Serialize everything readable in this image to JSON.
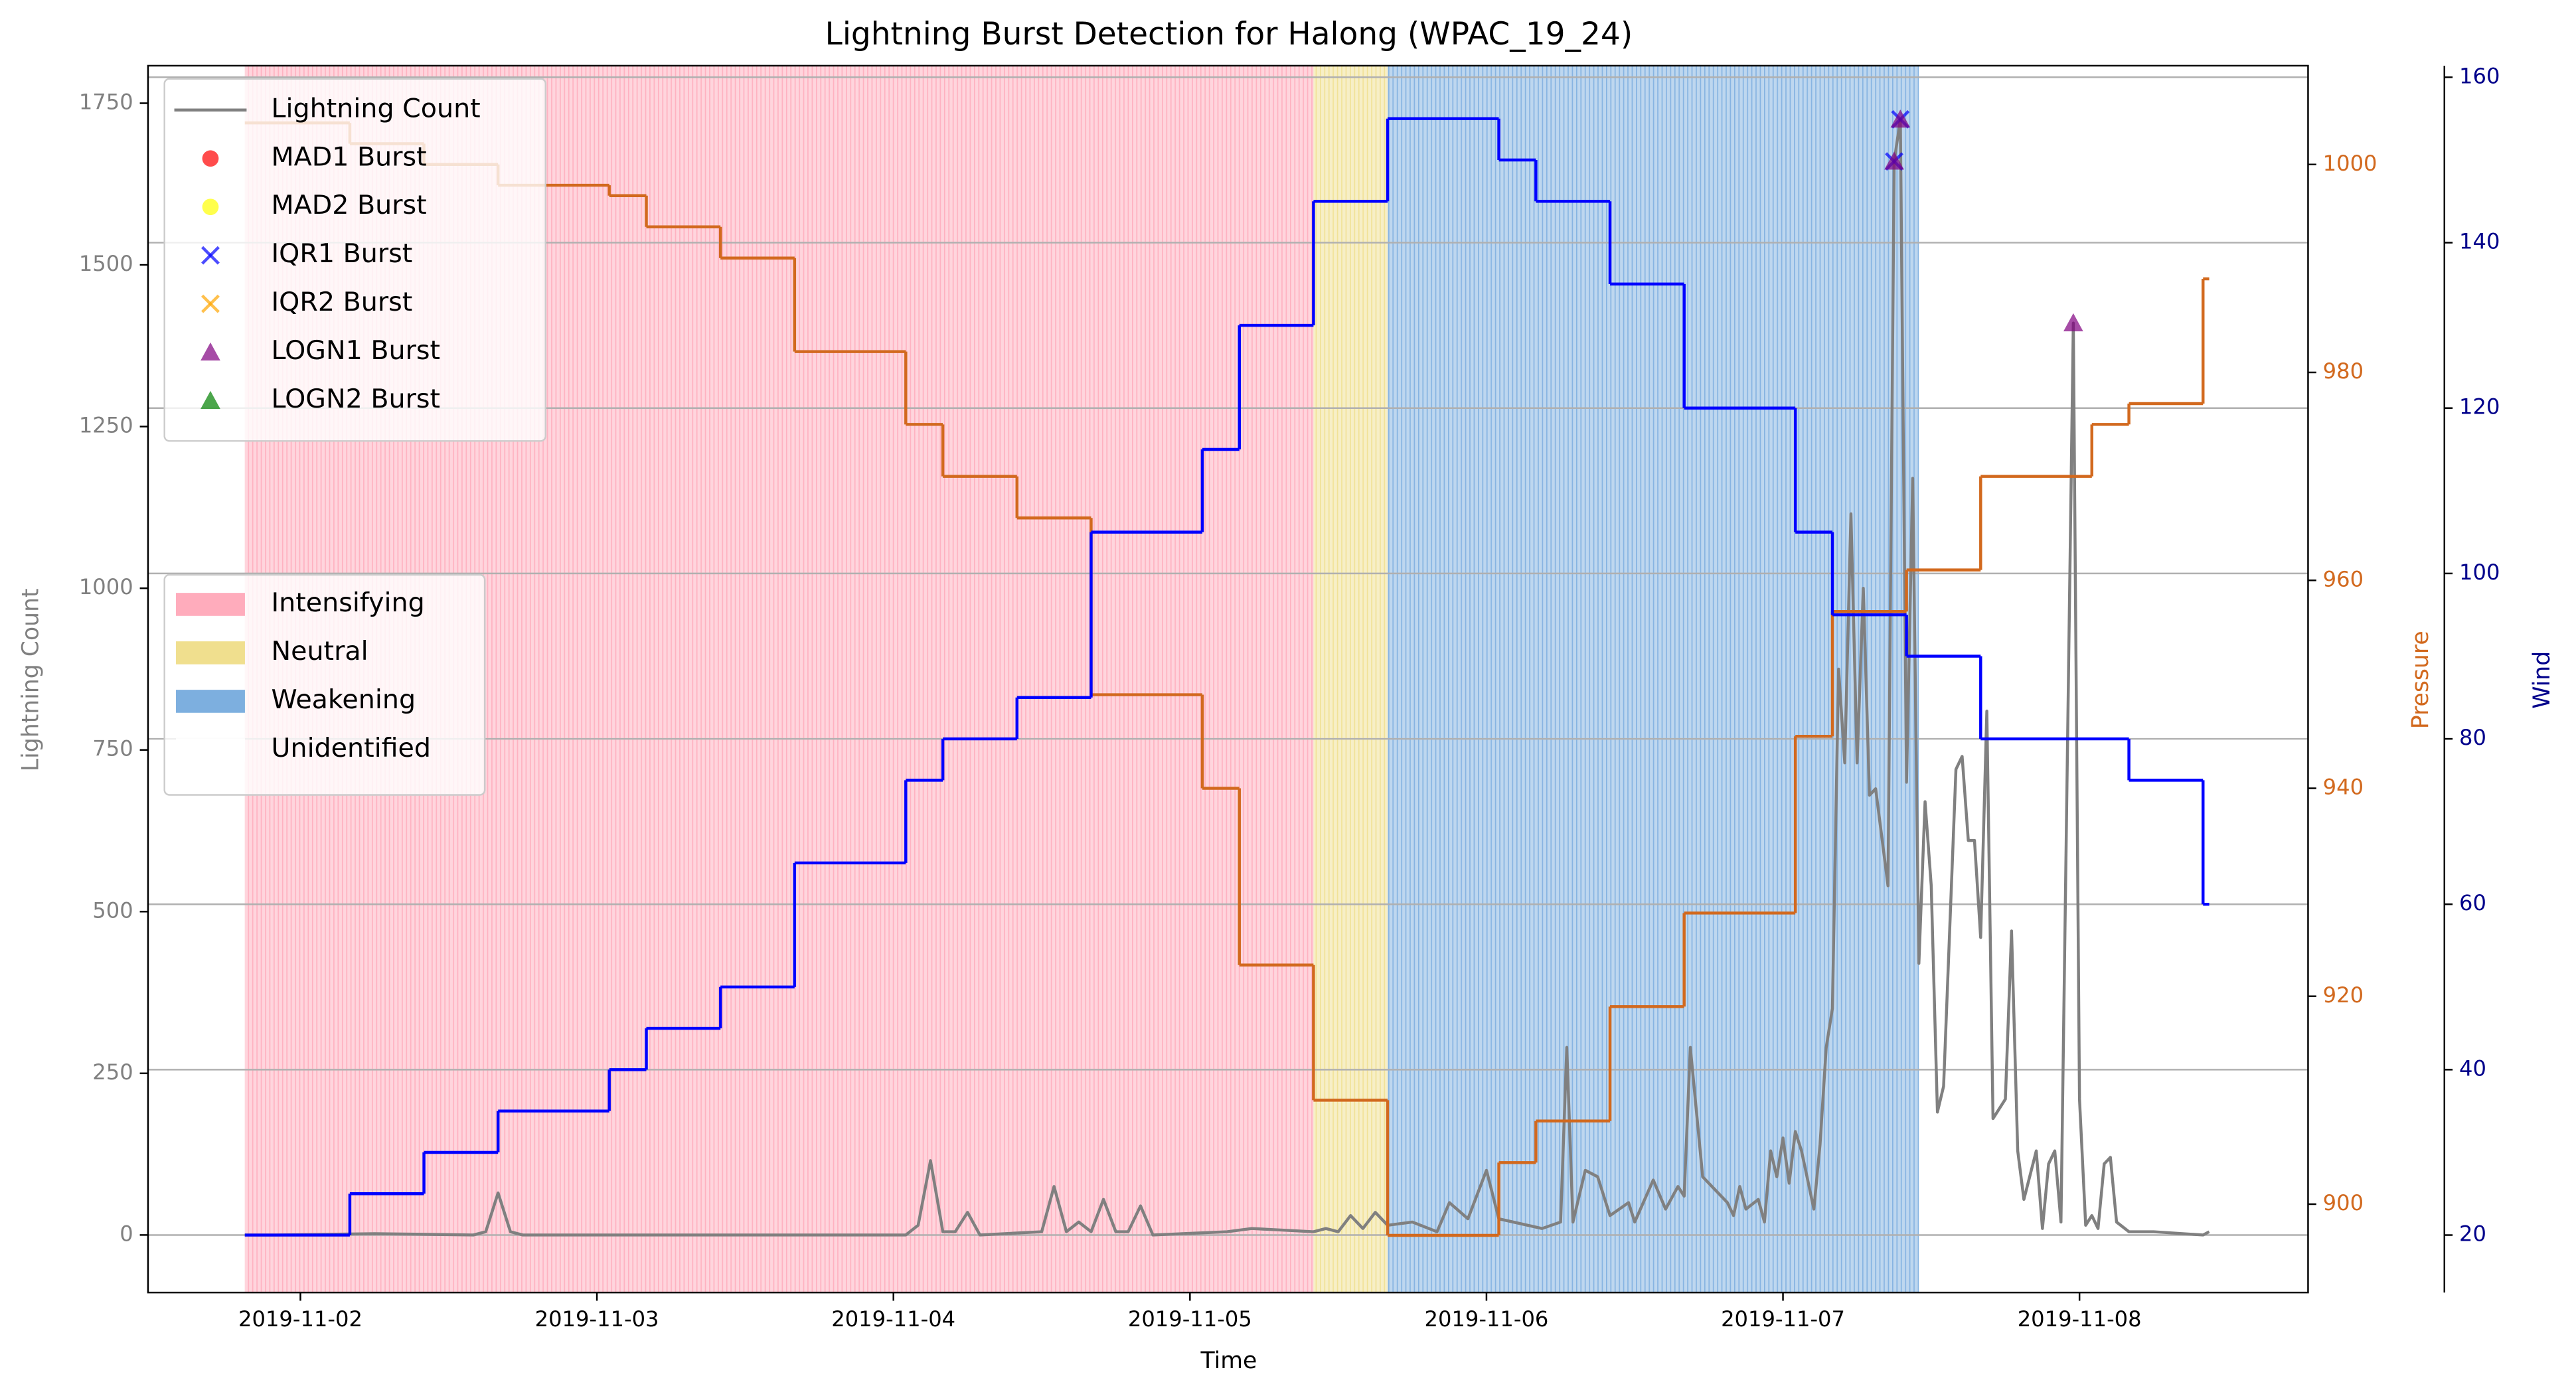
{
  "chart_data": {
    "type": "line",
    "title": "Lightning Burst Detection for Halong (WPAC_19_24)",
    "xlabel": "Time",
    "xlim": [
      "2019-11-01 11:40",
      "2019-11-08 18:30"
    ],
    "xticks": [
      "2019-11-02",
      "2019-11-03",
      "2019-11-04",
      "2019-11-05",
      "2019-11-06",
      "2019-11-07",
      "2019-11-08"
    ],
    "ylabel": "Lightning Count",
    "ylim": [
      -89,
      1808
    ],
    "yticks": [
      0,
      250,
      500,
      750,
      1000,
      1250,
      1500,
      1750
    ],
    "ycolor": "#808080",
    "y2label": "Pressure",
    "y2lim": [
      891.5,
      1009.5
    ],
    "y2ticks": [
      900,
      920,
      940,
      960,
      980,
      1000
    ],
    "y2color": "#d2691e",
    "y3label": "Wind",
    "y3lim": [
      13.05,
      161.4
    ],
    "y3ticks": [
      20,
      40,
      60,
      80,
      100,
      120,
      140,
      160
    ],
    "y3color": "#00008b",
    "grid": "y3",
    "legend": "upper left",
    "series": [
      {
        "name": "Lightning Count",
        "color": "#808080",
        "x": [
          "2019-11-01 19:30",
          "2019-11-01 22:00",
          "2019-11-02 06:00",
          "2019-11-02 14:00",
          "2019-11-02 15:00",
          "2019-11-02 16:00",
          "2019-11-02 17:00",
          "2019-11-02 18:00",
          "2019-11-03 16:00",
          "2019-11-04 01:00",
          "2019-11-04 02:00",
          "2019-11-04 03:00",
          "2019-11-04 04:00",
          "2019-11-04 05:00",
          "2019-11-04 06:00",
          "2019-11-04 07:00",
          "2019-11-04 12:00",
          "2019-11-04 13:00",
          "2019-11-04 14:00",
          "2019-11-04 15:00",
          "2019-11-04 16:00",
          "2019-11-04 17:00",
          "2019-11-04 18:00",
          "2019-11-04 19:00",
          "2019-11-04 20:00",
          "2019-11-04 21:00",
          "2019-11-05 03:00",
          "2019-11-05 05:00",
          "2019-11-05 10:00",
          "2019-11-05 11:00",
          "2019-11-05 12:00",
          "2019-11-05 13:00",
          "2019-11-05 14:00",
          "2019-11-05 15:00",
          "2019-11-05 16:00",
          "2019-11-05 18:00",
          "2019-11-05 20:00",
          "2019-11-05 21:00",
          "2019-11-05 22:30",
          "2019-11-06 00:00",
          "2019-11-06 01:00",
          "2019-11-06 04:30",
          "2019-11-06 06:00",
          "2019-11-06 06:30",
          "2019-11-06 07:00",
          "2019-11-06 08:00",
          "2019-11-06 09:00",
          "2019-11-06 10:00",
          "2019-11-06 11:30",
          "2019-11-06 12:00",
          "2019-11-06 13:30",
          "2019-11-06 14:30",
          "2019-11-06 15:30",
          "2019-11-06 16:00",
          "2019-11-06 16:30",
          "2019-11-06 17:30",
          "2019-11-06 19:30",
          "2019-11-06 20:00",
          "2019-11-06 20:30",
          "2019-11-06 21:00",
          "2019-11-06 22:00",
          "2019-11-06 22:30",
          "2019-11-06 23:00",
          "2019-11-06 23:30",
          "2019-11-07 00:00",
          "2019-11-07 00:30",
          "2019-11-07 01:00",
          "2019-11-07 01:30",
          "2019-11-07 02:30",
          "2019-11-07 03:00",
          "2019-11-07 03:30",
          "2019-11-07 04:00",
          "2019-11-07 04:30",
          "2019-11-07 05:00",
          "2019-11-07 05:30",
          "2019-11-07 06:00",
          "2019-11-07 06:30",
          "2019-11-07 07:00",
          "2019-11-07 07:30",
          "2019-11-07 08:30",
          "2019-11-07 09:00",
          "2019-11-07 09:30",
          "2019-11-07 10:00",
          "2019-11-07 10:30",
          "2019-11-07 11:00",
          "2019-11-07 11:30",
          "2019-11-07 12:00",
          "2019-11-07 12:30",
          "2019-11-07 13:00",
          "2019-11-07 14:00",
          "2019-11-07 14:30",
          "2019-11-07 15:00",
          "2019-11-07 15:30",
          "2019-11-07 16:00",
          "2019-11-07 16:30",
          "2019-11-07 17:00",
          "2019-11-07 18:00",
          "2019-11-07 18:30",
          "2019-11-07 19:00",
          "2019-11-07 19:30",
          "2019-11-07 20:30",
          "2019-11-07 21:00",
          "2019-11-07 21:30",
          "2019-11-07 22:00",
          "2019-11-07 22:30",
          "2019-11-07 23:30",
          "2019-11-08 00:00",
          "2019-11-08 00:30",
          "2019-11-08 01:00",
          "2019-11-08 01:30",
          "2019-11-08 02:00",
          "2019-11-08 02:30",
          "2019-11-08 03:00",
          "2019-11-08 04:00",
          "2019-11-08 06:00",
          "2019-11-08 10:00",
          "2019-11-08 10:30"
        ],
        "values": [
          0,
          0,
          2,
          0,
          5,
          65,
          5,
          0,
          0,
          0,
          15,
          115,
          5,
          5,
          35,
          0,
          5,
          75,
          5,
          20,
          5,
          55,
          5,
          5,
          45,
          0,
          5,
          10,
          5,
          10,
          5,
          30,
          10,
          35,
          15,
          20,
          5,
          50,
          25,
          100,
          25,
          10,
          20,
          290,
          20,
          100,
          90,
          30,
          50,
          20,
          85,
          40,
          75,
          60,
          290,
          90,
          50,
          30,
          75,
          40,
          55,
          20,
          130,
          90,
          150,
          80,
          160,
          130,
          40,
          140,
          290,
          350,
          875,
          730,
          1115,
          730,
          1000,
          680,
          690,
          540,
          1660,
          1725,
          700,
          1170,
          420,
          670,
          540,
          190,
          230,
          720,
          740,
          610,
          610,
          460,
          810,
          180,
          210,
          470,
          130,
          55,
          130,
          10,
          110,
          130,
          20,
          1410,
          210,
          15,
          30,
          10,
          110,
          120,
          20,
          5,
          5,
          0,
          5
        ]
      },
      {
        "name": "MAD1 Burst",
        "type": "scatter",
        "marker": "o",
        "color": "#ff0000",
        "x": [],
        "values": []
      },
      {
        "name": "MAD2 Burst",
        "type": "scatter",
        "marker": "o",
        "color": "#ffff00",
        "x": [],
        "values": []
      },
      {
        "name": "IQR1 Burst",
        "type": "scatter",
        "marker": "x",
        "color": "#0000ff",
        "x": [
          "2019-11-07 09:00",
          "2019-11-07 09:30"
        ],
        "values": [
          1660,
          1725
        ]
      },
      {
        "name": "IQR2 Burst",
        "type": "scatter",
        "marker": "x",
        "color": "#ffa500",
        "x": [],
        "values": []
      },
      {
        "name": "LOGN1 Burst",
        "type": "scatter",
        "marker": "^",
        "color": "#800080",
        "x": [
          "2019-11-07 09:00",
          "2019-11-07 09:30",
          "2019-11-07 23:30"
        ],
        "values": [
          1660,
          1725,
          1410
        ]
      },
      {
        "name": "LOGN2 Burst",
        "type": "scatter",
        "marker": "^",
        "color": "#008000",
        "x": [],
        "values": []
      },
      {
        "axis": "y2",
        "step": "post",
        "color": "#d2691e",
        "x": [
          "2019-11-01 19:30",
          "2019-11-02 04:00",
          "2019-11-02 10:00",
          "2019-11-02 16:00",
          "2019-11-03 01:00",
          "2019-11-03 04:00",
          "2019-11-03 10:00",
          "2019-11-03 16:00",
          "2019-11-04 01:00",
          "2019-11-04 04:00",
          "2019-11-04 10:00",
          "2019-11-04 16:00",
          "2019-11-05 01:00",
          "2019-11-05 04:00",
          "2019-11-05 10:00",
          "2019-11-05 16:00",
          "2019-11-06 01:00",
          "2019-11-06 04:00",
          "2019-11-06 10:00",
          "2019-11-06 16:00",
          "2019-11-07 01:00",
          "2019-11-07 04:00",
          "2019-11-07 10:00",
          "2019-11-07 16:00",
          "2019-11-08 01:00",
          "2019-11-08 04:00",
          "2019-11-08 10:00",
          "2019-11-08 10:30"
        ],
        "values": [
          1004,
          1002,
          1000,
          998,
          997,
          994,
          991,
          982,
          975,
          970,
          966,
          949,
          940,
          923,
          910,
          897,
          904,
          908,
          919,
          928,
          945,
          957,
          961,
          970,
          975,
          977,
          989,
          989
        ]
      },
      {
        "axis": "y3",
        "step": "post",
        "color": "#0000ff",
        "x": [
          "2019-11-01 19:30",
          "2019-11-02 04:00",
          "2019-11-02 10:00",
          "2019-11-02 16:00",
          "2019-11-03 01:00",
          "2019-11-03 04:00",
          "2019-11-03 10:00",
          "2019-11-03 16:00",
          "2019-11-04 01:00",
          "2019-11-04 04:00",
          "2019-11-04 10:00",
          "2019-11-04 16:00",
          "2019-11-05 01:00",
          "2019-11-05 04:00",
          "2019-11-05 10:00",
          "2019-11-05 16:00",
          "2019-11-06 01:00",
          "2019-11-06 04:00",
          "2019-11-06 10:00",
          "2019-11-06 16:00",
          "2019-11-07 01:00",
          "2019-11-07 04:00",
          "2019-11-07 10:00",
          "2019-11-07 16:00",
          "2019-11-08 04:00",
          "2019-11-08 10:00",
          "2019-11-08 10:30"
        ],
        "values": [
          20,
          25,
          30,
          35,
          40,
          45,
          50,
          65,
          75,
          80,
          85,
          105,
          115,
          130,
          145,
          155,
          150,
          145,
          135,
          120,
          105,
          95,
          90,
          80,
          75,
          60,
          60
        ]
      }
    ],
    "phases": {
      "legend": "center left",
      "items": [
        {
          "name": "Intensifying",
          "color": "#ffa3b5",
          "start": "2019-11-01 19:30",
          "end": "2019-11-05 10:00"
        },
        {
          "name": "Neutral",
          "color": "#eedc82",
          "start": "2019-11-05 10:00",
          "end": "2019-11-05 16:00"
        },
        {
          "name": "Weakening",
          "color": "#6fa6dc",
          "start": "2019-11-05 16:00",
          "end": "2019-11-07 11:00"
        },
        {
          "name": "Unidentified",
          "color": "#ffffff"
        }
      ]
    }
  }
}
